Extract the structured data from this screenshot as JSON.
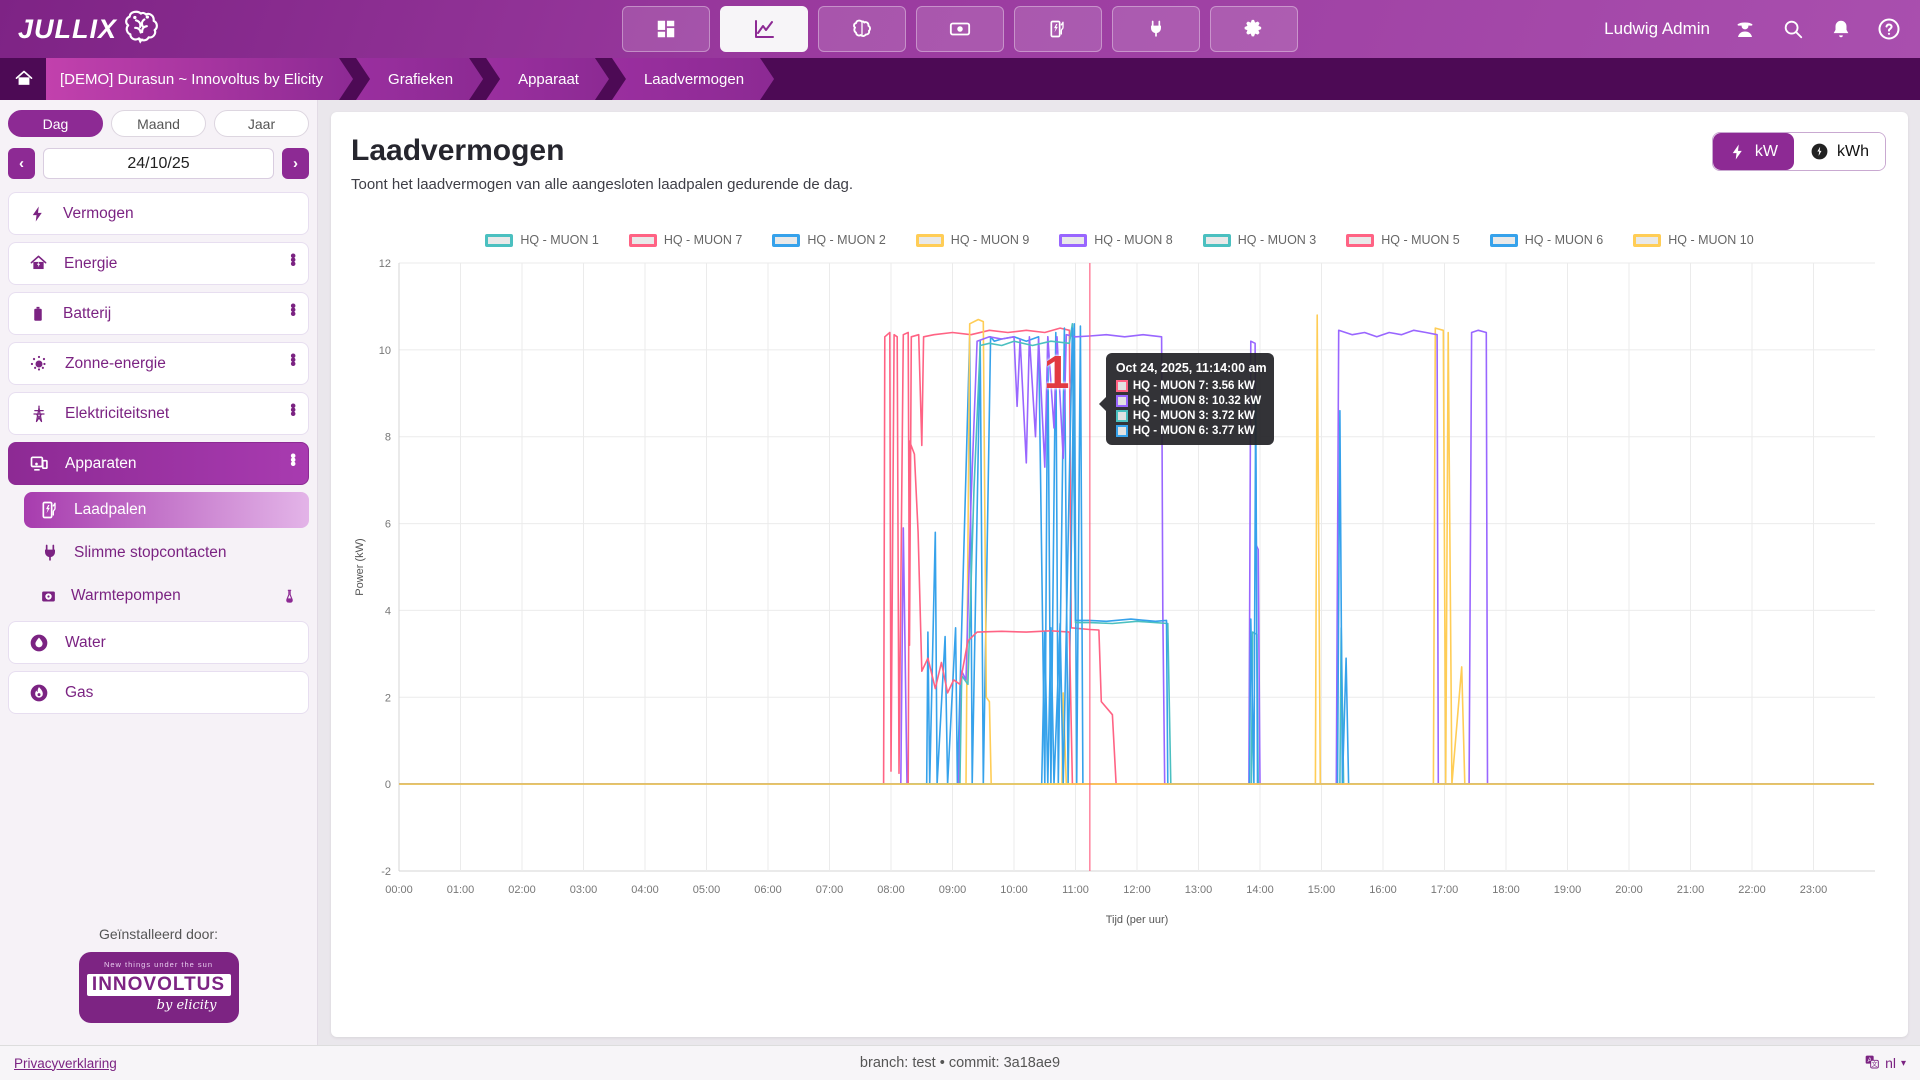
{
  "header": {
    "logo_text": "JULLIX",
    "user_name": "Ludwig Admin",
    "nav": [
      {
        "icon": "dashboard-icon",
        "active": false
      },
      {
        "icon": "line-chart-icon",
        "active": true
      },
      {
        "icon": "brain-icon",
        "active": false
      },
      {
        "icon": "money-icon",
        "active": false
      },
      {
        "icon": "charging-station-icon",
        "active": false
      },
      {
        "icon": "plug-icon",
        "active": false
      },
      {
        "icon": "gear-icon",
        "active": false
      }
    ],
    "right_icons": [
      "admin-icon",
      "search-icon",
      "bell-icon",
      "help-icon"
    ]
  },
  "breadcrumb": {
    "items": [
      "[DEMO] Durasun ~ Innovoltus by Elicity",
      "Grafieken",
      "Apparaat",
      "Laadvermogen"
    ]
  },
  "sidebar": {
    "period_tabs": [
      {
        "label": "Dag",
        "active": true
      },
      {
        "label": "Maand",
        "active": false
      },
      {
        "label": "Jaar",
        "active": false
      }
    ],
    "date_value": "24/10/25",
    "prev_label": "‹",
    "next_label": "›",
    "menu": [
      {
        "label": "Vermogen",
        "icon": "bolt-icon",
        "kebab": false,
        "active": false
      },
      {
        "label": "Energie",
        "icon": "house-bolt-icon",
        "kebab": true,
        "active": false
      },
      {
        "label": "Batterij",
        "icon": "battery-icon",
        "kebab": true,
        "active": false
      },
      {
        "label": "Zonne-energie",
        "icon": "sun-icon",
        "kebab": true,
        "active": false
      },
      {
        "label": "Elektriciteitsnet",
        "icon": "pylon-icon",
        "kebab": true,
        "active": false
      },
      {
        "label": "Apparaten",
        "icon": "devices-icon",
        "kebab": true,
        "active": true,
        "children": [
          {
            "label": "Laadpalen",
            "icon": "charging-station-icon",
            "active": true
          },
          {
            "label": "Slimme stopcontacten",
            "icon": "plug-icon",
            "active": false
          },
          {
            "label": "Warmtepompen",
            "icon": "heatpump-icon",
            "active": false,
            "badge": "flask-icon"
          }
        ]
      },
      {
        "label": "Water",
        "icon": "water-drop-icon",
        "kebab": false,
        "active": false
      },
      {
        "label": "Gas",
        "icon": "flame-icon",
        "kebab": false,
        "active": false
      }
    ],
    "installed_by_label": "Geïnstalleerd door:",
    "installer": {
      "tagline": "New things under the sun",
      "name": "INNOVOLTUS",
      "by": "by elicity"
    }
  },
  "main": {
    "title": "Laadvermogen",
    "subtitle": "Toont het laadvermogen van alle aangesloten laadpalen gedurende de dag.",
    "unit_toggle": [
      {
        "label": "kW",
        "icon": "bolt-icon",
        "active": true
      },
      {
        "label": "kWh",
        "icon": "meter-icon",
        "active": false
      }
    ]
  },
  "tooltip": {
    "title": "Oct 24, 2025, 11:14:00 am",
    "rows": [
      {
        "label": "HQ - MUON 7",
        "value": "3.56 kW",
        "color": "#ff6384"
      },
      {
        "label": "HQ - MUON 8",
        "value": "10.32 kW",
        "color": "#9966ff"
      },
      {
        "label": "HQ - MUON 3",
        "value": "3.72 kW",
        "color": "#4bc0c0"
      },
      {
        "label": "HQ - MUON 6",
        "value": "3.77 kW",
        "color": "#36a2eb"
      }
    ],
    "annotation": "1"
  },
  "footer": {
    "privacy": "Privacyverklaring",
    "center": "branch: test • commit: 3a18ae9",
    "lang": "nl"
  },
  "colors": {
    "accent": "#8d2a94",
    "header_dark": "#4d0a55",
    "crosshair": "#ff6384"
  },
  "chart_data": {
    "type": "line",
    "title": "Laadvermogen",
    "xlabel": "Tijd (per uur)",
    "ylabel": "Power (kW)",
    "ylim": [
      -2,
      12
    ],
    "yticks": [
      -2,
      0,
      2,
      4,
      6,
      8,
      10,
      12
    ],
    "xticks": [
      "00:00",
      "01:00",
      "02:00",
      "03:00",
      "04:00",
      "05:00",
      "06:00",
      "07:00",
      "08:00",
      "09:00",
      "10:00",
      "11:00",
      "12:00",
      "13:00",
      "14:00",
      "15:00",
      "16:00",
      "17:00",
      "18:00",
      "19:00",
      "20:00",
      "21:00",
      "22:00",
      "23:00"
    ],
    "x_domain_hours": [
      0,
      24
    ],
    "grid": true,
    "legend_position": "top",
    "crosshair_hour": 11.233,
    "crosshair_label": "Oct 24, 2025, 11:14:00 am",
    "series": [
      {
        "name": "HQ - MUON 1",
        "color": "#4bc0c0",
        "points": [
          [
            0,
            0
          ],
          [
            23.98,
            0
          ]
        ]
      },
      {
        "name": "HQ - MUON 7",
        "color": "#ff6384",
        "points": [
          [
            0,
            0
          ],
          [
            7.88,
            0
          ],
          [
            7.9,
            10.3
          ],
          [
            7.98,
            10.4
          ],
          [
            8.0,
            0.3
          ],
          [
            8.05,
            10.35
          ],
          [
            8.1,
            10.3
          ],
          [
            8.13,
            0.25
          ],
          [
            8.2,
            10.35
          ],
          [
            8.28,
            10.4
          ],
          [
            8.3,
            3.2
          ],
          [
            8.33,
            10.3
          ],
          [
            8.45,
            10.35
          ],
          [
            8.5,
            7.8
          ],
          [
            8.53,
            10.3
          ],
          [
            8.7,
            10.35
          ],
          [
            9.0,
            10.4
          ],
          [
            9.3,
            10.35
          ],
          [
            9.6,
            10.45
          ],
          [
            9.9,
            10.4
          ],
          [
            10.2,
            10.45
          ],
          [
            10.5,
            10.4
          ],
          [
            10.75,
            10.5
          ],
          [
            10.9,
            10.45
          ],
          [
            10.93,
            3.6
          ],
          [
            11.23,
            3.56
          ],
          [
            11.38,
            3.55
          ],
          [
            11.42,
            1.9
          ],
          [
            11.6,
            1.6
          ],
          [
            11.66,
            0
          ],
          [
            23.98,
            0
          ]
        ]
      },
      {
        "name": "HQ - MUON 2",
        "color": "#36a2eb",
        "points": [
          [
            0,
            0
          ],
          [
            8.58,
            0
          ],
          [
            8.6,
            3.5
          ],
          [
            8.63,
            0
          ],
          [
            8.72,
            5.8
          ],
          [
            8.75,
            0
          ],
          [
            8.88,
            3.4
          ],
          [
            8.92,
            0
          ],
          [
            9.05,
            3.6
          ],
          [
            9.08,
            0
          ],
          [
            9.28,
            10.3
          ],
          [
            9.32,
            0
          ],
          [
            9.45,
            10.2
          ],
          [
            9.5,
            0
          ],
          [
            9.62,
            10.3
          ],
          [
            9.68,
            10.2
          ],
          [
            9.8,
            10.25
          ],
          [
            10.0,
            10.3
          ],
          [
            10.2,
            10.2
          ],
          [
            10.4,
            10.3
          ],
          [
            10.5,
            0
          ],
          [
            10.55,
            10.3
          ],
          [
            10.6,
            0
          ],
          [
            10.68,
            10.4
          ],
          [
            10.72,
            0
          ],
          [
            10.82,
            10.5
          ],
          [
            10.88,
            0
          ],
          [
            10.98,
            10.6
          ],
          [
            11.02,
            0
          ],
          [
            11.08,
            10.55
          ],
          [
            11.12,
            0
          ],
          [
            23.98,
            0
          ]
        ]
      },
      {
        "name": "HQ - MUON 9",
        "color": "#ffcd56",
        "points": [
          [
            0,
            0
          ],
          [
            9.22,
            0
          ],
          [
            9.28,
            10.6
          ],
          [
            9.42,
            10.7
          ],
          [
            9.5,
            10.65
          ],
          [
            9.55,
            2.0
          ],
          [
            9.6,
            1.9
          ],
          [
            9.63,
            0
          ],
          [
            10.78,
            0
          ],
          [
            10.8,
            2.1
          ],
          [
            10.85,
            0
          ],
          [
            14.9,
            0
          ],
          [
            14.93,
            10.8
          ],
          [
            14.98,
            0
          ],
          [
            16.82,
            0
          ],
          [
            16.85,
            10.5
          ],
          [
            16.98,
            10.45
          ],
          [
            17.02,
            0
          ],
          [
            17.06,
            10.4
          ],
          [
            17.12,
            0
          ],
          [
            17.28,
            2.7
          ],
          [
            17.33,
            0
          ],
          [
            23.98,
            0
          ]
        ]
      },
      {
        "name": "HQ - MUON 8",
        "color": "#9966ff",
        "points": [
          [
            0,
            0
          ],
          [
            8.16,
            0
          ],
          [
            8.2,
            5.9
          ],
          [
            8.26,
            0
          ],
          [
            9.1,
            0
          ],
          [
            9.15,
            2.6
          ],
          [
            9.22,
            2.4
          ],
          [
            9.3,
            6.5
          ],
          [
            9.4,
            10.2
          ],
          [
            9.6,
            10.3
          ],
          [
            9.8,
            10.25
          ],
          [
            10.0,
            10.3
          ],
          [
            10.05,
            8.7
          ],
          [
            10.1,
            10.25
          ],
          [
            10.2,
            7.4
          ],
          [
            10.25,
            10.3
          ],
          [
            10.35,
            8.0
          ],
          [
            10.4,
            10.25
          ],
          [
            10.5,
            7.3
          ],
          [
            10.55,
            10.3
          ],
          [
            10.65,
            8.2
          ],
          [
            10.7,
            10.3
          ],
          [
            10.8,
            7.5
          ],
          [
            10.85,
            10.35
          ],
          [
            11.0,
            10.3
          ],
          [
            11.23,
            10.32
          ],
          [
            11.5,
            10.35
          ],
          [
            11.8,
            10.3
          ],
          [
            12.1,
            10.35
          ],
          [
            12.4,
            10.3
          ],
          [
            12.42,
            4.0
          ],
          [
            12.45,
            0
          ],
          [
            13.82,
            0
          ],
          [
            13.85,
            10.2
          ],
          [
            13.92,
            10.15
          ],
          [
            13.94,
            5.5
          ],
          [
            13.97,
            5.4
          ],
          [
            14.0,
            0
          ],
          [
            15.24,
            0
          ],
          [
            15.28,
            10.45
          ],
          [
            15.5,
            10.35
          ],
          [
            15.7,
            10.4
          ],
          [
            15.9,
            10.3
          ],
          [
            16.1,
            10.4
          ],
          [
            16.3,
            10.35
          ],
          [
            16.5,
            10.45
          ],
          [
            16.7,
            10.4
          ],
          [
            16.88,
            10.35
          ],
          [
            16.9,
            0
          ],
          [
            17.4,
            0
          ],
          [
            17.44,
            10.4
          ],
          [
            17.55,
            10.45
          ],
          [
            17.68,
            10.4
          ],
          [
            17.7,
            0
          ],
          [
            23.98,
            0
          ]
        ]
      },
      {
        "name": "HQ - MUON 3",
        "color": "#4bc0c0",
        "points": [
          [
            0,
            0
          ],
          [
            9.12,
            0
          ],
          [
            9.15,
            2.5
          ],
          [
            9.25,
            2.3
          ],
          [
            9.35,
            6.8
          ],
          [
            9.45,
            10.1
          ],
          [
            9.6,
            10.15
          ],
          [
            9.8,
            10.1
          ],
          [
            10.0,
            10.2
          ],
          [
            10.3,
            10.1
          ],
          [
            10.6,
            10.2
          ],
          [
            10.9,
            10.15
          ],
          [
            10.95,
            10.6
          ],
          [
            11.0,
            3.72
          ],
          [
            11.23,
            3.72
          ],
          [
            11.6,
            3.7
          ],
          [
            12.0,
            3.75
          ],
          [
            12.5,
            3.7
          ],
          [
            12.55,
            0
          ],
          [
            13.86,
            0
          ],
          [
            13.88,
            3.5
          ],
          [
            13.95,
            3.45
          ],
          [
            13.97,
            0
          ],
          [
            15.3,
            0
          ],
          [
            15.32,
            3.6
          ],
          [
            15.36,
            0
          ],
          [
            23.98,
            0
          ]
        ]
      },
      {
        "name": "HQ - MUON 5",
        "color": "#ff6384",
        "points": [
          [
            0,
            0
          ],
          [
            8.28,
            0
          ],
          [
            8.3,
            7.9
          ],
          [
            8.38,
            7.6
          ],
          [
            8.44,
            5.8
          ],
          [
            8.5,
            2.6
          ],
          [
            8.6,
            2.9
          ],
          [
            8.72,
            2.2
          ],
          [
            8.82,
            2.8
          ],
          [
            8.92,
            2.1
          ],
          [
            9.02,
            2.4
          ],
          [
            9.12,
            2.3
          ],
          [
            9.25,
            3.3
          ],
          [
            9.4,
            3.5
          ],
          [
            9.8,
            3.52
          ],
          [
            10.2,
            3.5
          ],
          [
            10.6,
            3.53
          ],
          [
            10.9,
            3.5
          ],
          [
            10.95,
            0
          ],
          [
            23.98,
            0
          ]
        ]
      },
      {
        "name": "HQ - MUON 6",
        "color": "#36a2eb",
        "points": [
          [
            0,
            0
          ],
          [
            10.45,
            0
          ],
          [
            10.5,
            3.5
          ],
          [
            10.55,
            0
          ],
          [
            10.6,
            3.6
          ],
          [
            10.65,
            0
          ],
          [
            10.75,
            3.7
          ],
          [
            10.8,
            0
          ],
          [
            10.95,
            10.5
          ],
          [
            11.0,
            3.77
          ],
          [
            11.23,
            3.77
          ],
          [
            11.5,
            3.75
          ],
          [
            11.9,
            3.8
          ],
          [
            12.3,
            3.75
          ],
          [
            12.48,
            3.77
          ],
          [
            12.5,
            0
          ],
          [
            13.83,
            0
          ],
          [
            13.85,
            3.8
          ],
          [
            13.9,
            0
          ],
          [
            13.93,
            8.9
          ],
          [
            13.96,
            0
          ],
          [
            15.26,
            0
          ],
          [
            15.3,
            8.6
          ],
          [
            15.34,
            0
          ],
          [
            15.4,
            2.9
          ],
          [
            15.44,
            0
          ],
          [
            23.98,
            0
          ]
        ]
      },
      {
        "name": "HQ - MUON 10",
        "color": "#ffcd56",
        "points": [
          [
            0,
            0
          ],
          [
            23.98,
            0
          ]
        ]
      }
    ]
  }
}
